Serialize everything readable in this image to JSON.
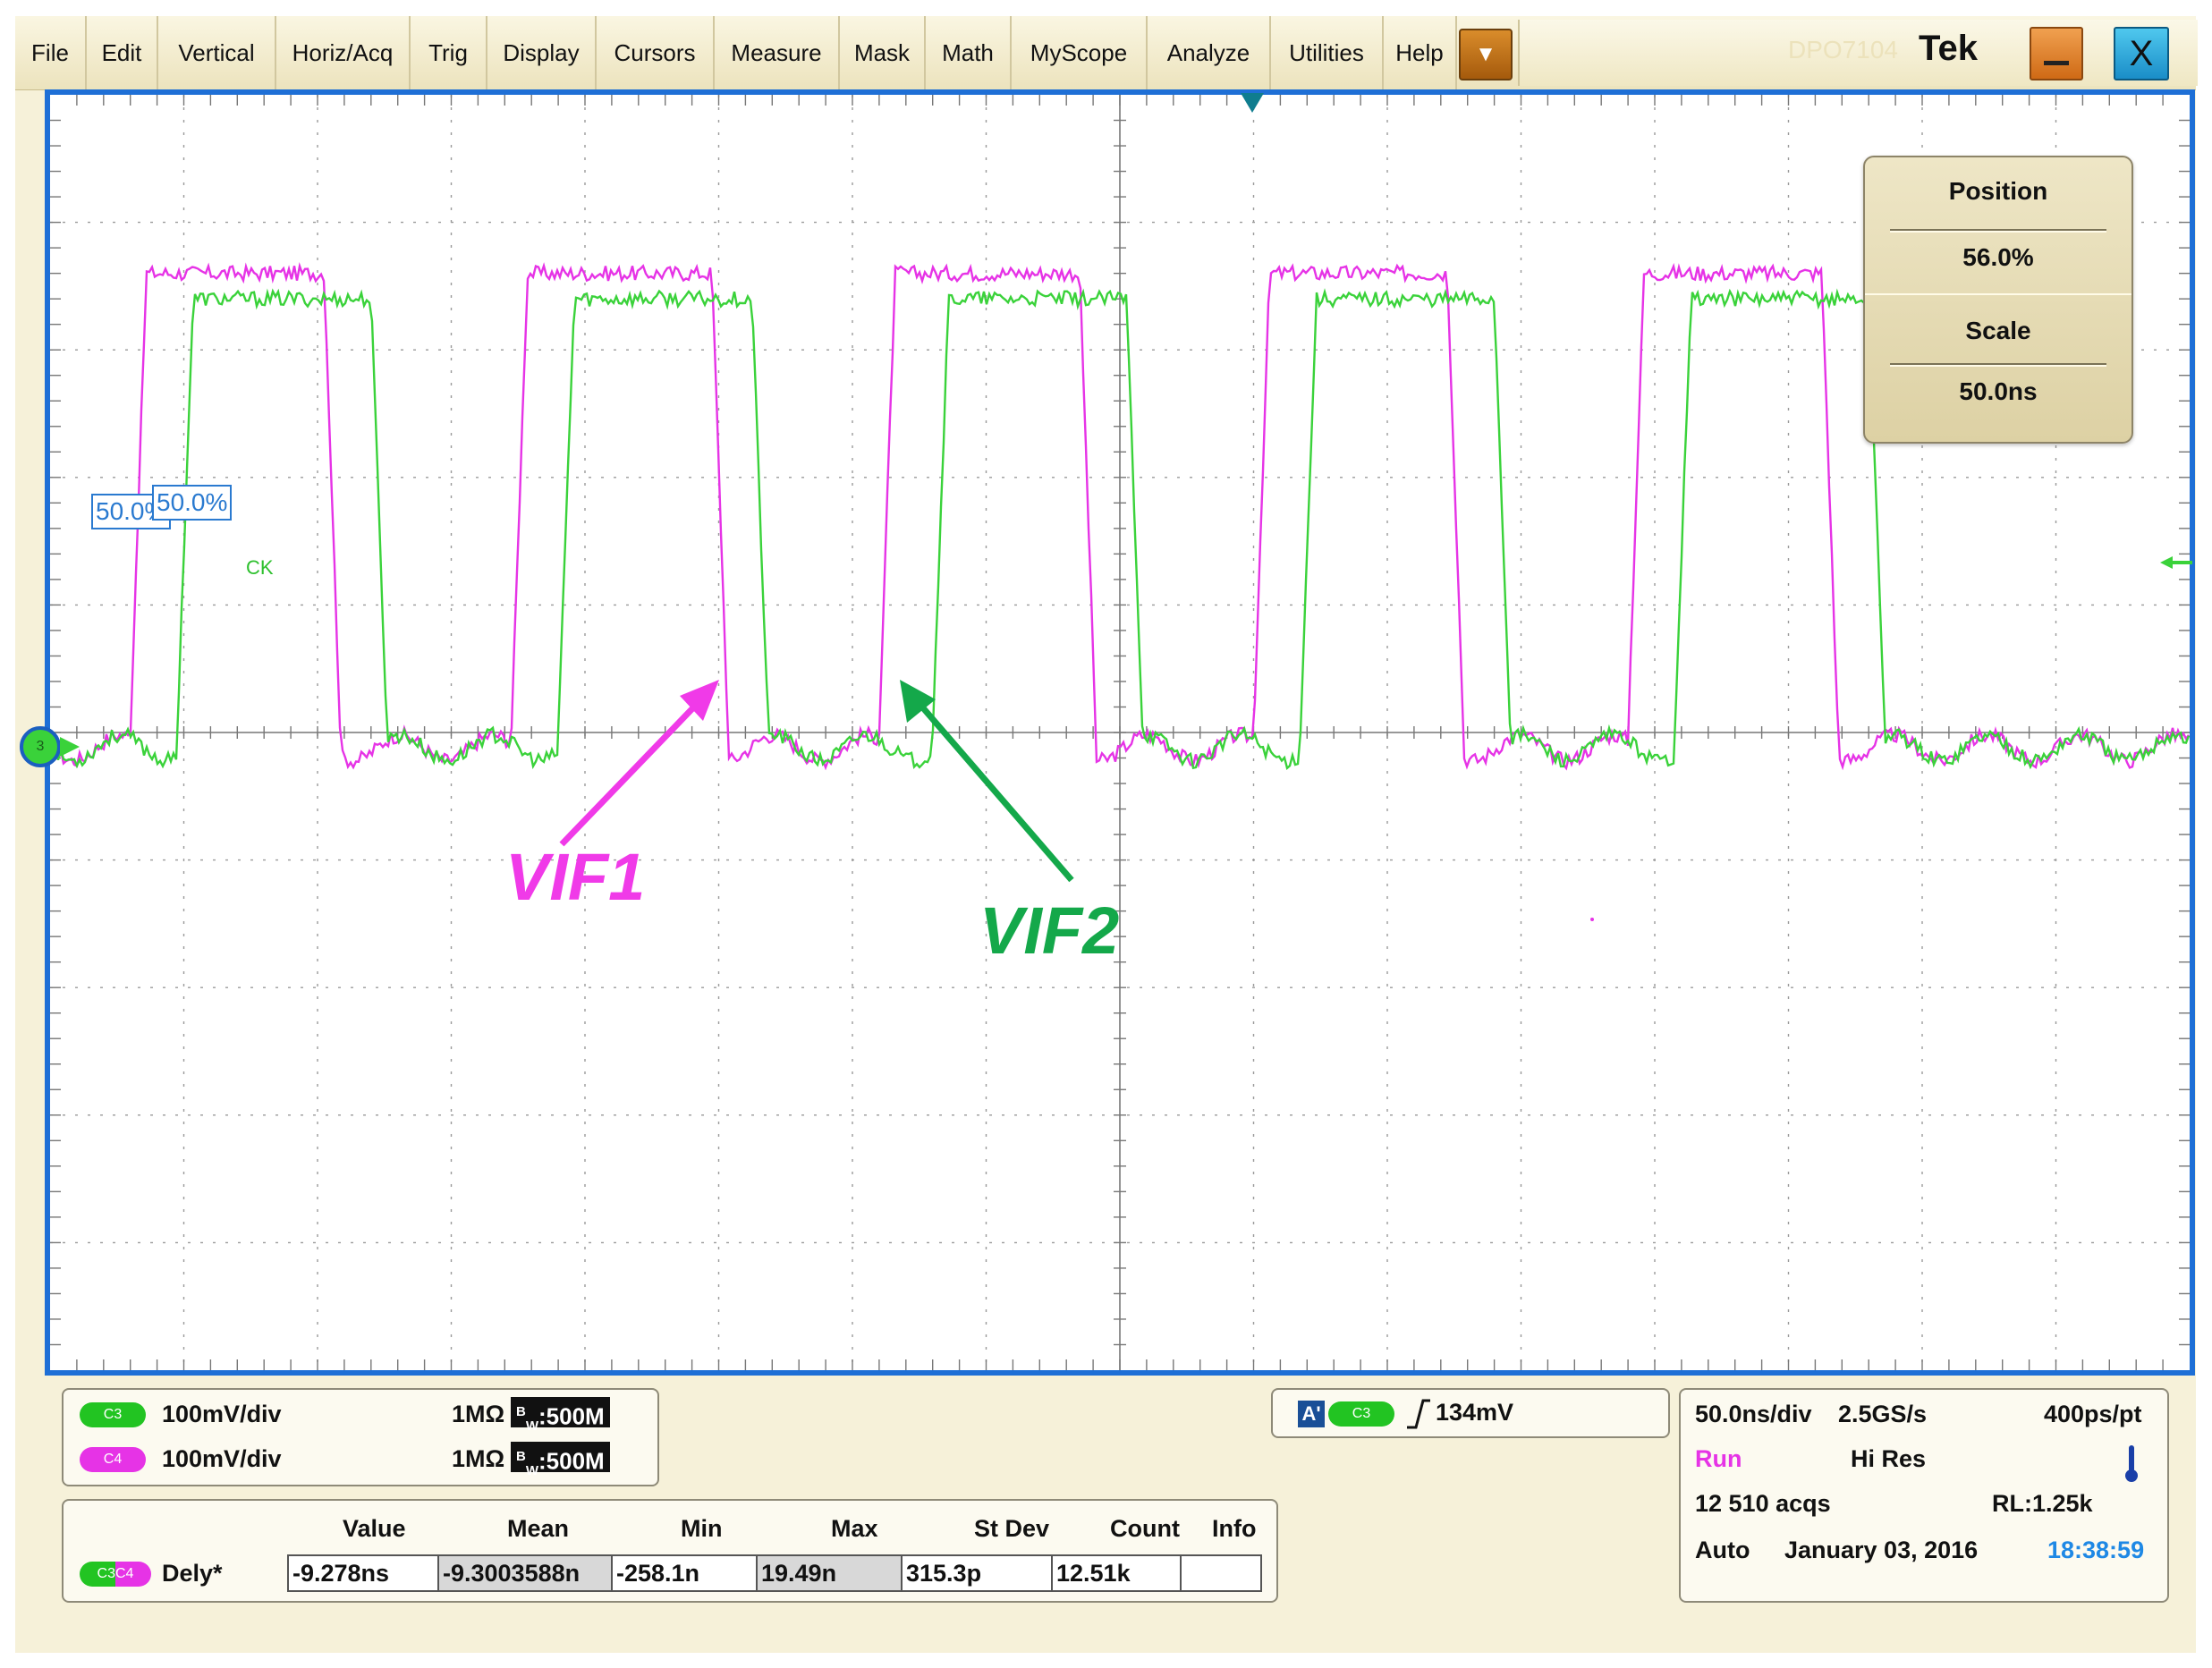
{
  "menu": {
    "items": [
      "File",
      "Edit",
      "Vertical",
      "Horiz/Acq",
      "Trig",
      "Display",
      "Cursors",
      "Measure",
      "Mask",
      "Math",
      "MyScope",
      "Analyze",
      "Utilities",
      "Help"
    ],
    "dropdown_icon": "chevron-down-icon",
    "model": "DPO7104",
    "brand": "Tek"
  },
  "window": {
    "minimize_icon": "minimize-icon",
    "close_label": "X"
  },
  "position_scale_panel": {
    "position_label": "Position",
    "position_value": "56.0%",
    "scale_label": "Scale",
    "scale_value": "50.0ns"
  },
  "reference": {
    "ref1": "50.0%",
    "ref2": "50.0%",
    "ck_label": "CK",
    "ground_marker_label": "3"
  },
  "annotations": {
    "vif1": "VIF1",
    "vif2": "VIF2"
  },
  "colors": {
    "ch3": "#3ad23a",
    "ch4": "#e633e6",
    "vif1_annotation": "#f03ae8",
    "vif2_annotation": "#14a84a",
    "frame": "#1e6fd6"
  },
  "waveform": {
    "time_per_div_ns": 50,
    "volts_per_div_mv": 100,
    "ch3_high_level_div": 3.4,
    "ch4_high_level_div": 3.6,
    "ch3_rising_edges_div": [
      0.95,
      3.8,
      6.6,
      9.35,
      12.15
    ],
    "ch3_falling_edges_div": [
      2.4,
      5.25,
      8.05,
      10.8,
      13.6
    ],
    "ch4_rising_edges_div": [
      0.6,
      3.45,
      6.2,
      9.0,
      11.8
    ],
    "ch4_falling_edges_div": [
      2.05,
      4.95,
      7.7,
      10.45,
      13.25
    ]
  },
  "channels": [
    {
      "pill": "C3",
      "scale": "100mV/div",
      "impedance": "1MΩ",
      "bw_prefix": "B",
      "bw_sub": "W",
      "bw_value": ":500M"
    },
    {
      "pill": "C4",
      "scale": "100mV/div",
      "impedance": "1MΩ",
      "bw_prefix": "B",
      "bw_sub": "W",
      "bw_value": ":500M"
    }
  ],
  "trigger": {
    "source_badge": "A'",
    "source_pill": "C3",
    "level": "134mV"
  },
  "measurement": {
    "headers": [
      "Value",
      "Mean",
      "Min",
      "Max",
      "St Dev",
      "Count",
      "Info"
    ],
    "row_pill": "C3C4",
    "row_label": "Dely*",
    "values": [
      "-9.278ns",
      "-9.3003588n",
      "-258.1n",
      "19.49n",
      "315.3p",
      "12.51k",
      ""
    ]
  },
  "acquisition": {
    "timebase": "50.0ns/div",
    "sample_rate": "2.5GS/s",
    "resolution": "400ps/pt",
    "run_state": "Run",
    "mode": "Hi Res",
    "acqs": "12 510 acqs",
    "record_length": "RL:1.25k",
    "trigger_mode": "Auto",
    "date": "January 03, 2016",
    "time": "18:38:59"
  }
}
